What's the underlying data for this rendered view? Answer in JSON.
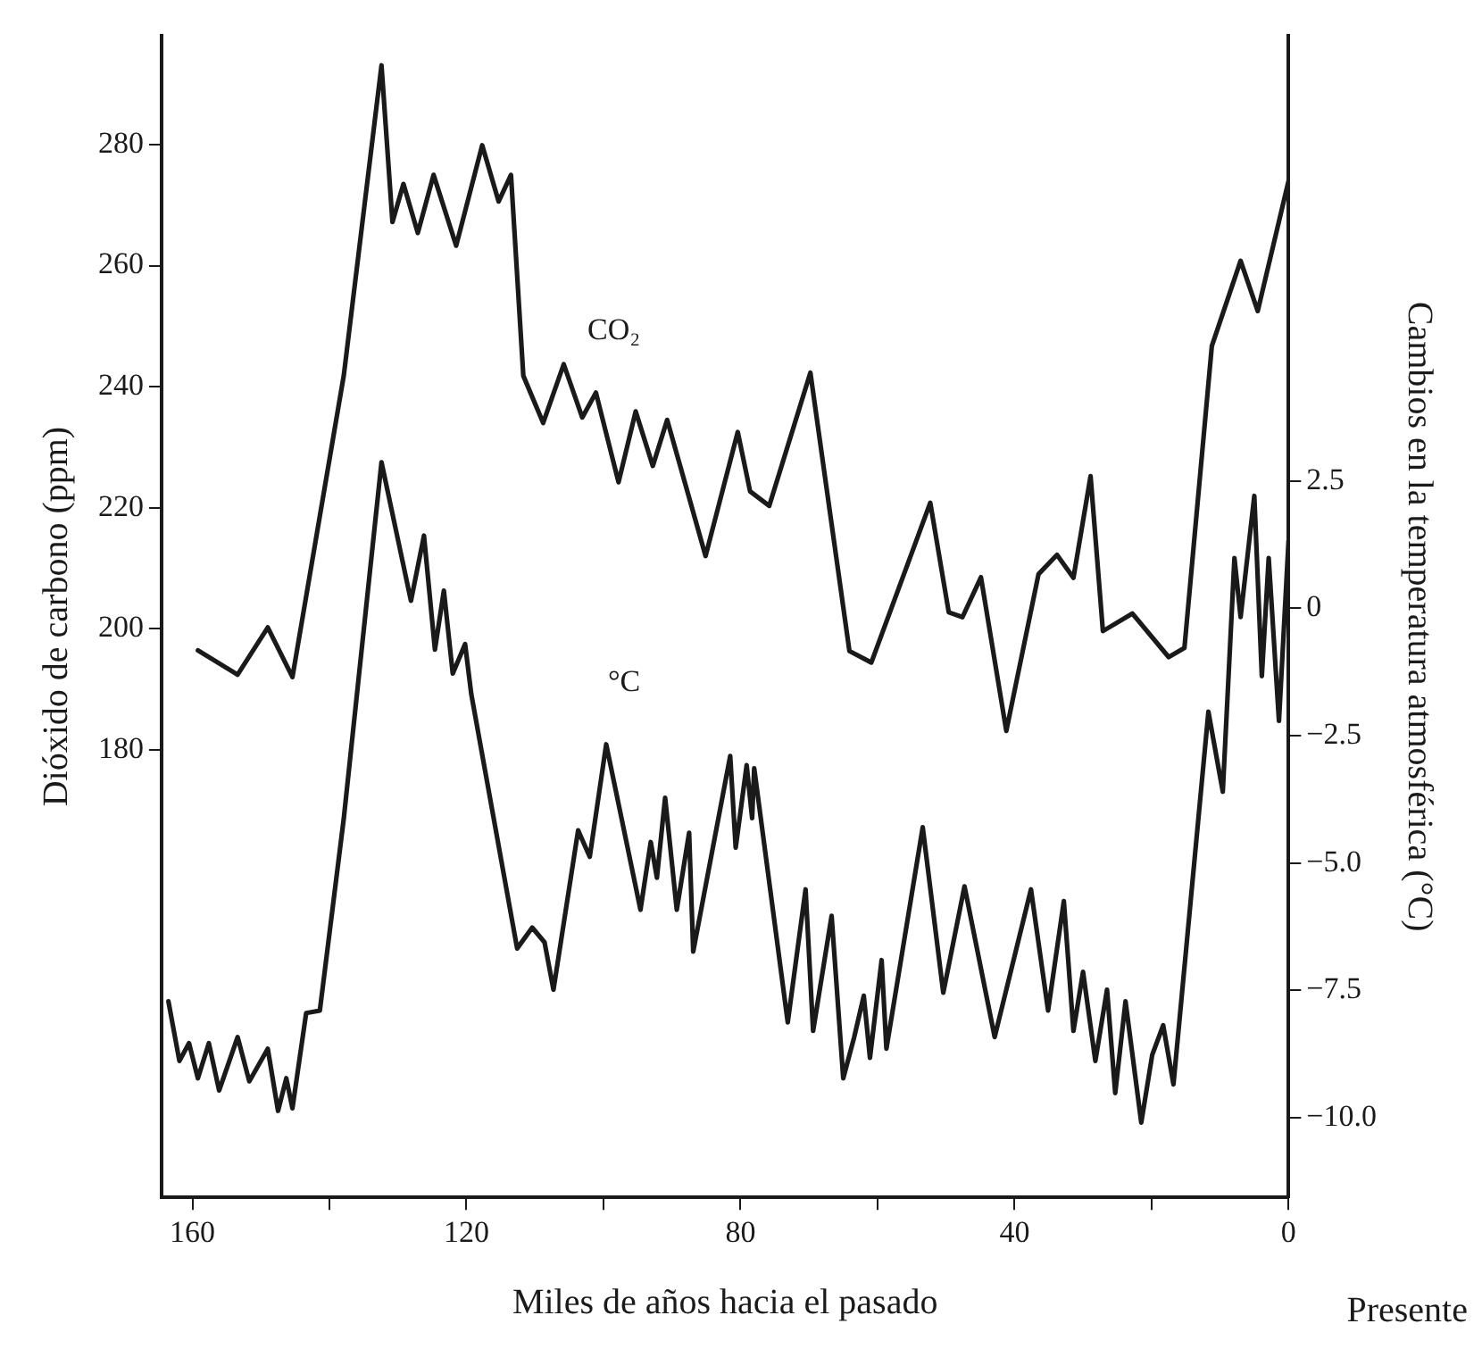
{
  "chart_data": {
    "type": "line",
    "xlabel": "Miles de años hacia el pasado",
    "ylabel": "Dióxido de carbono (ppm)",
    "y2label": "Cambios en la temperatura atmosférica (°C)",
    "xlim": [
      164.5,
      0
    ],
    "xticks": [
      160,
      {
        "value": 140,
        "label": null
      },
      120,
      {
        "value": 100,
        "label": null
      },
      80,
      {
        "value": 60,
        "label": null
      },
      40,
      {
        "value": 20,
        "label": null
      },
      0
    ],
    "ylim": [
      106,
      298
    ],
    "yticks": [
      180,
      200,
      220,
      240,
      260,
      280
    ],
    "y2lim": [
      -11.57,
      11.25
    ],
    "y2ticks": [
      2.5,
      0,
      {
        "value": -2.5,
        "label": "−2.5"
      },
      {
        "value": -5,
        "label": "−5.0"
      },
      {
        "value": -7.5,
        "label": "−7.5"
      },
      {
        "value": -10,
        "label": "−10.0"
      }
    ],
    "grid": false,
    "legend": false,
    "marker": "none",
    "line_style": "solid",
    "annotations": [
      "Presente"
    ],
    "series": [
      {
        "name": "CO₂",
        "color": "#1a1a1a",
        "x": [
          159.2,
          153.4,
          149,
          145.4,
          137.9,
          132.4,
          130.8,
          129.2,
          127.1,
          124.8,
          121.5,
          117.7,
          115.3,
          113.5,
          111.7,
          108.8,
          105.8,
          103.1,
          101.1,
          97.8,
          95.3,
          92.8,
          90.7,
          85.1,
          80.4,
          78.6,
          75.8,
          69.8,
          64.1,
          60.9,
          52.3,
          49.6,
          47.6,
          44.9,
          41.2,
          36.5,
          33.8,
          31.4,
          28.9,
          27.1,
          22.8,
          17.5,
          15.2,
          11.2,
          7,
          4.5,
          0
        ],
        "values": [
          196.4,
          192.4,
          200.2,
          192,
          241.9,
          293.1,
          267.2,
          273.5,
          265.4,
          275,
          263.3,
          279.9,
          270.6,
          275,
          241.8,
          234,
          243.7,
          234.9,
          239,
          224.2,
          235.9,
          226.9,
          234.5,
          212,
          232.5,
          222.7,
          220.3,
          242.3,
          196.3,
          194.4,
          220.8,
          202.7,
          201.9,
          208.5,
          183.1,
          209,
          212.2,
          208.4,
          225.2,
          199.6,
          202.5,
          195.3,
          196.8,
          246.7,
          260.8,
          252.5,
          274
        ]
      },
      {
        "name": "°C",
        "color": "#1a1a1a",
        "axis": "y2",
        "x": [
          163.5,
          161.9,
          160.5,
          159.2,
          157.6,
          156.1,
          153.4,
          151.7,
          149,
          147.5,
          146.3,
          145.4,
          143.4,
          141.4,
          137.9,
          132.4,
          128.1,
          126.2,
          124.6,
          123.3,
          122,
          120.2,
          119.3,
          112.6,
          110.4,
          108.6,
          107.3,
          103.7,
          102,
          99.6,
          94.6,
          93.1,
          92.2,
          91,
          89.3,
          87.5,
          86.9,
          81.5,
          80.7,
          79.1,
          78.3,
          78,
          73.1,
          70.5,
          69.4,
          66.7,
          65,
          63.4,
          62,
          61.1,
          59.4,
          58.7,
          53.4,
          50.4,
          47.3,
          42.9,
          37.6,
          35.1,
          32.8,
          31.4,
          30,
          28.2,
          26.5,
          25.3,
          23.8,
          21.5,
          19.9,
          18.3,
          16.8,
          11.7,
          9.6,
          7.9,
          7,
          5,
          3.9,
          2.9,
          1.4,
          0
        ],
        "values": [
          -7.72,
          -8.89,
          -8.54,
          -9.23,
          -8.54,
          -9.47,
          -8.42,
          -9.29,
          -8.65,
          -9.87,
          -9.23,
          -9.82,
          -7.95,
          -7.9,
          -4.12,
          2.87,
          0.15,
          1.43,
          -0.81,
          0.35,
          -1.28,
          -0.7,
          -1.68,
          -6.68,
          -6.27,
          -6.56,
          -7.49,
          -4.36,
          -4.88,
          -2.67,
          -5.92,
          -4.59,
          -5.29,
          -3.72,
          -5.92,
          -4.41,
          -6.74,
          -2.9,
          -4.7,
          -3.08,
          -4.12,
          -3.14,
          -8.13,
          -5.52,
          -8.3,
          -6.04,
          -9.23,
          -8.42,
          -7.61,
          -8.83,
          -6.91,
          -8.65,
          -4.3,
          -7.55,
          -5.46,
          -8.42,
          -5.52,
          -7.9,
          -5.75,
          -8.3,
          -7.14,
          -8.89,
          -7.49,
          -9.52,
          -7.72,
          -10.1,
          -8.77,
          -8.19,
          -9.35,
          -2.03,
          -3.6,
          0.99,
          -0.17,
          2.21,
          -1.33,
          0.99,
          -2.21,
          1.33
        ]
      }
    ]
  }
}
